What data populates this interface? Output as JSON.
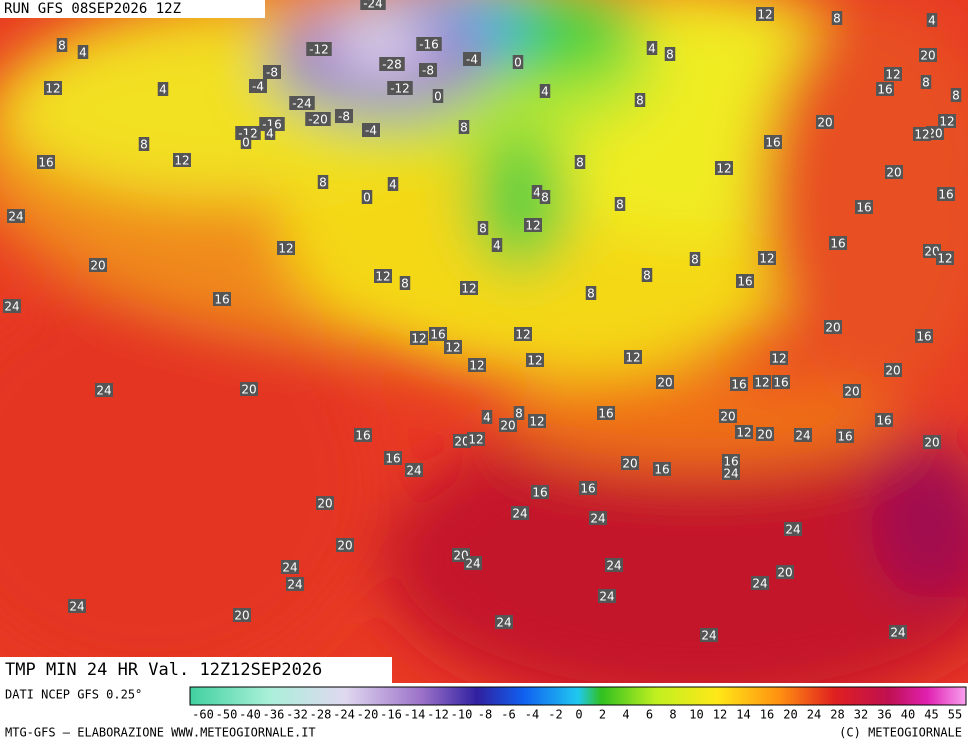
{
  "header": {
    "run": "RUN GFS 08SEP2026 12Z"
  },
  "map": {
    "product": "TMP MIN 24 HR Val. 12Z12SEP2026",
    "labels": [
      -24,
      12,
      8,
      4,
      8,
      4,
      -12,
      -16,
      -8,
      -4,
      -28,
      -8,
      -4,
      0,
      4,
      8,
      20,
      12,
      8,
      12,
      4,
      4,
      -12,
      0,
      -24,
      -20,
      -8,
      8,
      16,
      8,
      -16,
      -12,
      0,
      4,
      -4,
      8,
      20,
      12,
      20,
      12,
      8,
      16,
      16,
      12,
      8,
      12,
      20,
      8,
      4,
      0,
      4,
      8,
      8,
      16,
      16,
      24,
      8,
      12,
      12,
      4,
      16,
      20,
      12,
      20,
      8,
      8,
      12,
      12,
      8,
      16,
      12,
      8,
      16,
      24,
      20,
      12,
      16,
      12,
      12,
      16,
      12,
      12,
      12,
      12,
      20,
      24,
      20,
      20,
      16,
      12,
      16,
      20,
      4,
      8,
      12,
      20,
      16,
      20,
      16,
      16,
      12,
      20,
      24,
      16,
      20,
      12,
      20,
      16,
      24,
      20,
      16,
      16,
      24,
      20,
      16,
      16,
      24,
      24,
      24,
      20,
      20,
      24,
      24,
      24,
      24,
      20,
      24,
      24,
      24,
      20,
      24,
      24,
      24
    ]
  },
  "legend": {
    "source": "DATI NCEP GFS 0.25°",
    "ticks": [
      -60,
      -50,
      -40,
      -36,
      -32,
      -28,
      -24,
      -20,
      -16,
      -14,
      -12,
      -10,
      -8,
      -6,
      -4,
      -2,
      0,
      2,
      4,
      6,
      8,
      10,
      12,
      14,
      16,
      20,
      24,
      28,
      32,
      36,
      40,
      45,
      55
    ]
  },
  "footer": {
    "left": "MTG-GFS — ELABORAZIONE WWW.METEOGIORNALE.IT",
    "right": "(C) METEOGIORNALE"
  }
}
